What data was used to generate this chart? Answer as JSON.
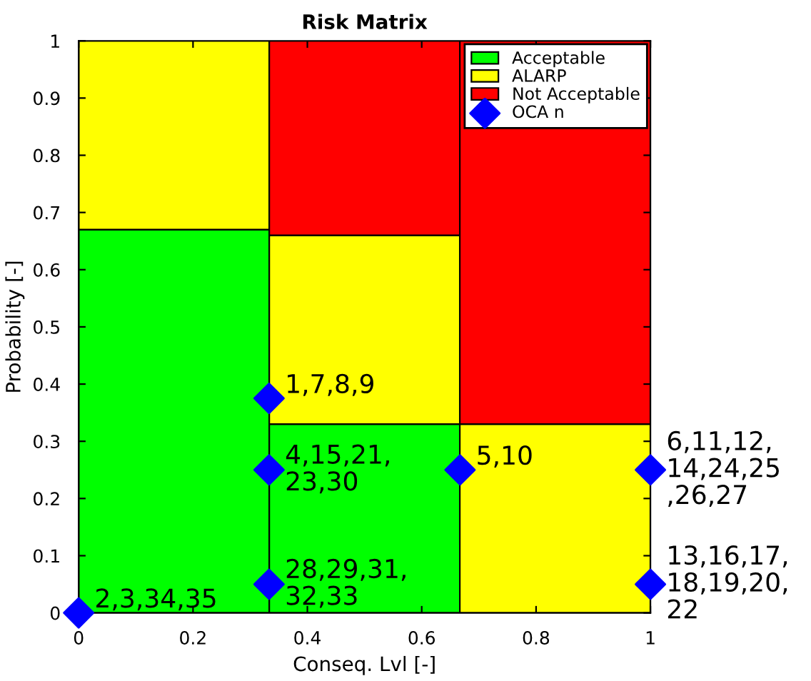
{
  "chart_data": {
    "type": "bar",
    "title": "Risk Matrix",
    "xlabel": "Conseq. Lvl [-]",
    "ylabel": "Probability [-]",
    "stacked": true,
    "x": [
      0.1667,
      0.5,
      0.8333
    ],
    "series": [
      {
        "name": "Acceptable",
        "color": "#00ff00",
        "values": [
          0.67,
          0.33,
          0
        ]
      },
      {
        "name": "ALARP",
        "color": "#ffff00",
        "values": [
          0.33,
          0.33,
          0.33
        ]
      },
      {
        "name": "Not Acceptable",
        "color": "#ff0000",
        "values": [
          0,
          0.34,
          0.67
        ]
      },
      {
        "name": "OCA n",
        "type": "scatter",
        "color": "#0000ff",
        "marker": "diamond",
        "x": [
          0,
          0.333,
          0.333,
          0.333,
          0.667,
          1,
          1
        ],
        "values": [
          0,
          0.05,
          0.25,
          0.375,
          0.25,
          0.25,
          0.05
        ]
      }
    ],
    "annotations": [
      {
        "text": "2,3,34,35",
        "x": 0,
        "y": 0
      },
      {
        "text": "28,29,31,\n32,33",
        "x": 0.333,
        "y": 0.05
      },
      {
        "text": "4,15,21,\n23,30",
        "x": 0.333,
        "y": 0.25
      },
      {
        "text": "1,7,8,9",
        "x": 0.333,
        "y": 0.375
      },
      {
        "text": "5,10",
        "x": 0.667,
        "y": 0.25
      },
      {
        "text": "6,11,12,\n14,24,25\n,26,27",
        "x": 1,
        "y": 0.25
      },
      {
        "text": "13,16,17,\n18,19,20,\n22",
        "x": 1,
        "y": 0.05
      }
    ],
    "xlim": [
      0,
      1
    ],
    "ylim": [
      0,
      1
    ],
    "xticks": [
      0,
      0.2,
      0.4,
      0.6,
      0.8,
      1
    ],
    "yticks": [
      0,
      0.1,
      0.2,
      0.3,
      0.4,
      0.5,
      0.6,
      0.7,
      0.8,
      0.9,
      1
    ],
    "legend": "top right",
    "grid": false
  }
}
